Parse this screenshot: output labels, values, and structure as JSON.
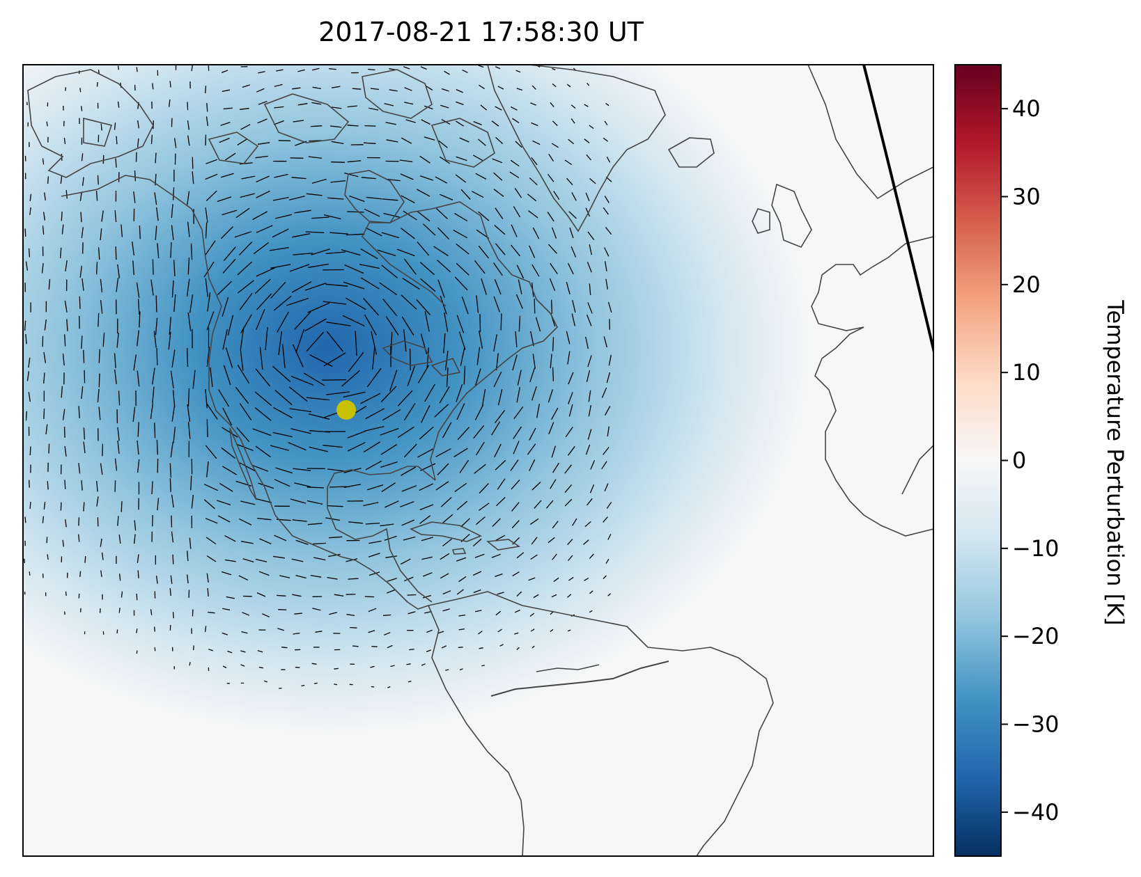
{
  "figure": {
    "title": "2017-08-21 17:58:30 UT"
  },
  "map": {
    "background_color": "#f5f5f5",
    "land_outline_color": "#444444",
    "terminator_color": "#000000",
    "marker_color": "#c9c100",
    "field_colors": {
      "deep": "#2166ac",
      "mid": "#4393c3",
      "light": "#92c5de",
      "pale": "#d1e5f0",
      "neutral": "#f7f7f7"
    }
  },
  "colorbar": {
    "label": "Temperature Perturbation [K]",
    "vmin": -45,
    "vmax": 45,
    "ticks": [
      {
        "value": 40,
        "text": "40"
      },
      {
        "value": 30,
        "text": "30"
      },
      {
        "value": 20,
        "text": "20"
      },
      {
        "value": 10,
        "text": "10"
      },
      {
        "value": 0,
        "text": "0"
      },
      {
        "value": -10,
        "text": "−10"
      },
      {
        "value": -20,
        "text": "−20"
      },
      {
        "value": -30,
        "text": "−30"
      },
      {
        "value": -40,
        "text": "−40"
      }
    ],
    "colormap": [
      "#053061",
      "#2166ac",
      "#4393c3",
      "#92c5de",
      "#d1e5f0",
      "#f7f7f7",
      "#fddbc7",
      "#f4a582",
      "#d6604d",
      "#b2182b",
      "#67001f"
    ]
  }
}
